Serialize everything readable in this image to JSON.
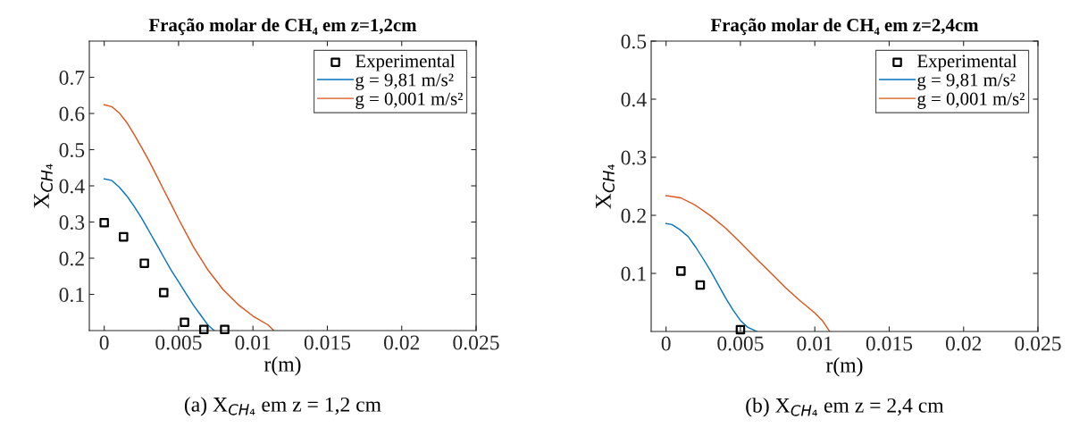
{
  "chart_data": [
    {
      "type": "line",
      "title": "Fração molar de CH₄ em z=1,2cm",
      "xlabel": "r(m)",
      "ylabel": "X$_{CH₄}$",
      "xlim": [
        -0.001,
        0.025
      ],
      "xticks": [
        0,
        0.005,
        0.01,
        0.015,
        0.02,
        0.025
      ],
      "ylim": [
        0,
        0.8
      ],
      "yticks": [
        0.1,
        0.2,
        0.3,
        0.4,
        0.5,
        0.6,
        0.7
      ],
      "grid": false,
      "legend": "top right",
      "annotations": [
        "(a) X$_{CH₄}$ em z = 1,2 cm"
      ],
      "series": [
        {
          "name": "Experimental",
          "type": "scatter",
          "marker": "square",
          "color": "#000000",
          "x": [
            0,
            0.0013,
            0.0027,
            0.004,
            0.0054,
            0.0067,
            0.0081
          ],
          "values": [
            0.298,
            0.259,
            0.186,
            0.105,
            0.023,
            0.003,
            0.003
          ]
        },
        {
          "name": "g = 9,81 m/s²",
          "color": "#0072bd",
          "x": [
            0,
            0.0005,
            0.001,
            0.0015,
            0.002,
            0.0025,
            0.003,
            0.0035,
            0.004,
            0.0045,
            0.005,
            0.0055,
            0.006,
            0.0065,
            0.007,
            0.0074
          ],
          "values": [
            0.419,
            0.415,
            0.397,
            0.373,
            0.344,
            0.312,
            0.276,
            0.24,
            0.203,
            0.167,
            0.135,
            0.102,
            0.07,
            0.042,
            0.014,
            0
          ]
        },
        {
          "name": "g = 0,001 m/s²",
          "color": "#d95319",
          "x": [
            0,
            0.0005,
            0.001,
            0.0015,
            0.002,
            0.0025,
            0.003,
            0.0035,
            0.004,
            0.0045,
            0.005,
            0.006,
            0.007,
            0.008,
            0.009,
            0.01,
            0.011,
            0.0114
          ],
          "values": [
            0.624,
            0.619,
            0.602,
            0.576,
            0.543,
            0.507,
            0.47,
            0.43,
            0.389,
            0.349,
            0.308,
            0.231,
            0.166,
            0.113,
            0.072,
            0.04,
            0.016,
            0
          ]
        }
      ]
    },
    {
      "type": "line",
      "title": "Fração molar de CH₄ em z=2,4cm",
      "xlabel": "r(m)",
      "ylabel": "X$_{CH₄}$",
      "xlim": [
        -0.001,
        0.025
      ],
      "xticks": [
        0,
        0.005,
        0.01,
        0.015,
        0.02,
        0.025
      ],
      "ylim": [
        0,
        0.5
      ],
      "yticks": [
        0.1,
        0.2,
        0.3,
        0.4,
        0.5
      ],
      "grid": false,
      "legend": "top right",
      "annotations": [
        "(b) X$_{CH₄}$ em z = 2,4 cm"
      ],
      "series": [
        {
          "name": "Experimental",
          "type": "scatter",
          "marker": "square",
          "color": "#000000",
          "x": [
            0.001,
            0.0023,
            0.005
          ],
          "values": [
            0.104,
            0.08,
            0.003
          ]
        },
        {
          "name": "g = 9,81 m/s²",
          "color": "#0072bd",
          "x": [
            0,
            0.0004,
            0.0009,
            0.0015,
            0.002,
            0.0025,
            0.003,
            0.0035,
            0.004,
            0.0045,
            0.005,
            0.0055,
            0.0061
          ],
          "values": [
            0.186,
            0.184,
            0.176,
            0.163,
            0.145,
            0.125,
            0.104,
            0.081,
            0.058,
            0.037,
            0.019,
            0.007,
            0
          ]
        },
        {
          "name": "g = 0,001 m/s²",
          "color": "#d95319",
          "x": [
            0,
            0.001,
            0.002,
            0.003,
            0.004,
            0.005,
            0.006,
            0.007,
            0.008,
            0.009,
            0.01,
            0.0105,
            0.011
          ],
          "values": [
            0.234,
            0.23,
            0.217,
            0.199,
            0.178,
            0.153,
            0.127,
            0.102,
            0.076,
            0.053,
            0.032,
            0.019,
            0
          ]
        }
      ]
    }
  ]
}
